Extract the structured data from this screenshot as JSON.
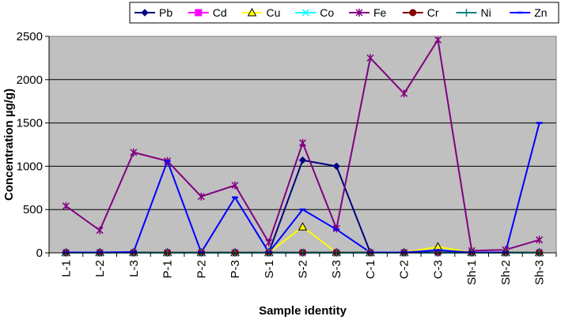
{
  "chart_data": {
    "type": "line",
    "title": "",
    "xlabel": "Sample identity",
    "ylabel": "Concentration µg/g)",
    "ylim": [
      0,
      2500
    ],
    "yticks": [
      "0",
      "500",
      "1000",
      "1500",
      "2000",
      "2500"
    ],
    "grid": true,
    "legend_position": "top",
    "plot_background": "#c0c0c0",
    "categories": [
      "L-1",
      "L-2",
      "L-3",
      "P-1",
      "P-2",
      "P-3",
      "S-1",
      "S-2",
      "S-3",
      "C-1",
      "C-2",
      "C-3",
      "Sh-1",
      "Sh-2",
      "Sh-3"
    ],
    "series": [
      {
        "name": "Pb",
        "color": "#000080",
        "marker": "diamond",
        "values": [
          5,
          5,
          5,
          5,
          5,
          5,
          5,
          1070,
          1000,
          5,
          5,
          5,
          5,
          5,
          5
        ]
      },
      {
        "name": "Cd",
        "color": "#ff00ff",
        "marker": "square",
        "values": [
          2,
          2,
          2,
          2,
          2,
          2,
          2,
          2,
          2,
          2,
          2,
          2,
          2,
          2,
          2
        ]
      },
      {
        "name": "Cu",
        "color": "#ffff00",
        "marker": "triangle",
        "values": [
          3,
          3,
          3,
          3,
          3,
          3,
          3,
          300,
          3,
          3,
          3,
          70,
          3,
          3,
          3
        ]
      },
      {
        "name": "Co",
        "color": "#00ffff",
        "marker": "x",
        "values": [
          1,
          1,
          1,
          1,
          1,
          1,
          1,
          1,
          1,
          1,
          1,
          1,
          1,
          1,
          1
        ]
      },
      {
        "name": "Fe",
        "color": "#800080",
        "marker": "star",
        "values": [
          540,
          260,
          1160,
          1060,
          650,
          780,
          120,
          1270,
          280,
          2250,
          1840,
          2460,
          25,
          35,
          150
        ]
      },
      {
        "name": "Cr",
        "color": "#800000",
        "marker": "circle",
        "values": [
          4,
          4,
          4,
          4,
          4,
          4,
          4,
          4,
          4,
          4,
          4,
          4,
          4,
          4,
          4
        ]
      },
      {
        "name": "Ni",
        "color": "#008080",
        "marker": "plus",
        "values": [
          2,
          2,
          2,
          2,
          2,
          2,
          2,
          2,
          2,
          2,
          2,
          2,
          2,
          2,
          2
        ]
      },
      {
        "name": "Zn",
        "color": "#0000ff",
        "marker": "dash",
        "values": [
          5,
          5,
          10,
          1060,
          5,
          640,
          5,
          500,
          270,
          5,
          5,
          30,
          5,
          5,
          1500
        ]
      }
    ]
  }
}
